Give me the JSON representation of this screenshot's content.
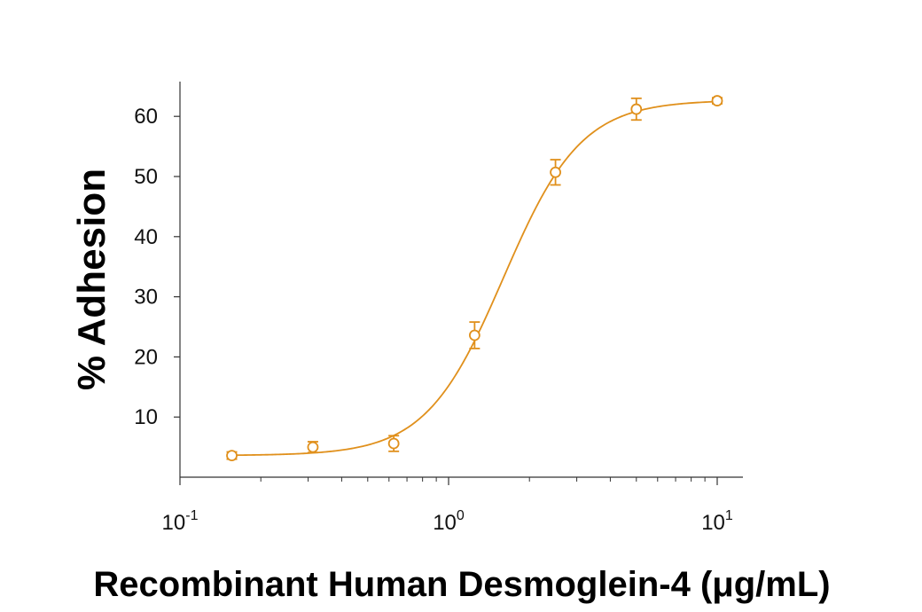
{
  "chart_data": {
    "type": "scatter",
    "xlabel": "Recombinant Human Desmoglein-4 (μg/mL)",
    "ylabel": "% Adhesion",
    "xscale": "log",
    "xlim": [
      0.1,
      12.5
    ],
    "ylim": [
      0,
      66
    ],
    "grid": false,
    "color": "#E0901C",
    "y_ticks": [
      10,
      20,
      30,
      40,
      50,
      60
    ],
    "y_tick_labels": [
      "10",
      "20",
      "30",
      "40",
      "50",
      "60"
    ],
    "x_major_ticks": [
      0.1,
      1,
      10
    ],
    "x_tick_labels": [
      {
        "base": "10",
        "exp": "-1"
      },
      {
        "base": "10",
        "exp": "0"
      },
      {
        "base": "10",
        "exp": "1"
      }
    ],
    "points": [
      {
        "x": 0.156,
        "y": 3.6,
        "err": 0.6
      },
      {
        "x": 0.3125,
        "y": 5.0,
        "err": 0.9
      },
      {
        "x": 0.625,
        "y": 5.6,
        "err": 1.3
      },
      {
        "x": 1.25,
        "y": 23.6,
        "err": 2.2
      },
      {
        "x": 2.5,
        "y": 50.7,
        "err": 2.1
      },
      {
        "x": 5.0,
        "y": 61.2,
        "err": 1.8
      },
      {
        "x": 10.0,
        "y": 62.6,
        "err": 0.5
      }
    ],
    "fit": {
      "model": "4PL",
      "bottom": 3.6,
      "top": 62.7,
      "ec50": 1.6,
      "hill": 3.0
    }
  }
}
